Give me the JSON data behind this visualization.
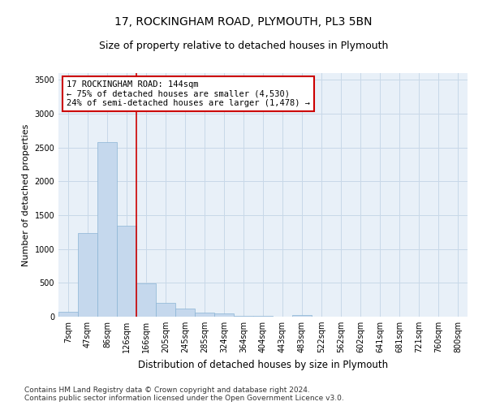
{
  "title1": "17, ROCKINGHAM ROAD, PLYMOUTH, PL3 5BN",
  "title2": "Size of property relative to detached houses in Plymouth",
  "xlabel": "Distribution of detached houses by size in Plymouth",
  "ylabel": "Number of detached properties",
  "bar_color": "#c5d8ed",
  "bar_edge_color": "#8ab4d4",
  "grid_color": "#c8d8e8",
  "bg_color": "#e8f0f8",
  "vline_color": "#cc0000",
  "vline_x_index": 3.5,
  "annotation_text": "17 ROCKINGHAM ROAD: 144sqm\n← 75% of detached houses are smaller (4,530)\n24% of semi-detached houses are larger (1,478) →",
  "annotation_box_color": "#ffffff",
  "annotation_border_color": "#cc0000",
  "categories": [
    "7sqm",
    "47sqm",
    "86sqm",
    "126sqm",
    "166sqm",
    "205sqm",
    "245sqm",
    "285sqm",
    "324sqm",
    "364sqm",
    "404sqm",
    "443sqm",
    "483sqm",
    "522sqm",
    "562sqm",
    "602sqm",
    "641sqm",
    "681sqm",
    "721sqm",
    "760sqm",
    "800sqm"
  ],
  "values": [
    75,
    1240,
    2580,
    1340,
    495,
    210,
    120,
    60,
    45,
    15,
    8,
    5,
    30,
    3,
    2,
    1,
    0,
    0,
    0,
    0,
    0
  ],
  "ylim": [
    0,
    3600
  ],
  "yticks": [
    0,
    500,
    1000,
    1500,
    2000,
    2500,
    3000,
    3500
  ],
  "footer": "Contains HM Land Registry data © Crown copyright and database right 2024.\nContains public sector information licensed under the Open Government Licence v3.0.",
  "title_fontsize": 10,
  "subtitle_fontsize": 9,
  "axis_label_fontsize": 8,
  "tick_fontsize": 7,
  "footer_fontsize": 6.5,
  "ann_fontsize": 7.5
}
